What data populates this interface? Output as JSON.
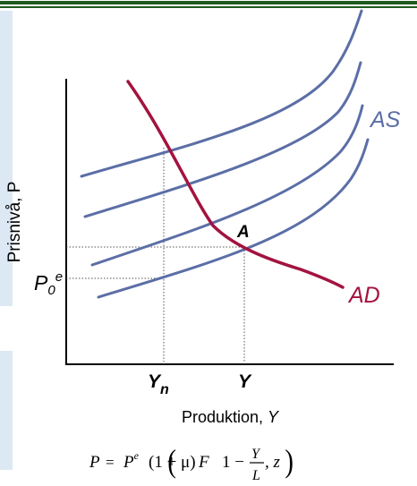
{
  "diagram": {
    "y_axis_label": "Prisnivå, P",
    "x_axis_label_prefix": "Produktion, ",
    "x_axis_label_var": "Y",
    "p0_main": "P",
    "p0_sub": "0",
    "p0_sup": "e",
    "point_label": "A",
    "as_label": "AS",
    "ad_label": "AD",
    "tick_yn_main": "Y",
    "tick_yn_sub": "n",
    "tick_y": "Y",
    "colors": {
      "as_curves": "#5b6ea6",
      "ad_curve": "#a3133f",
      "axes": "#000000",
      "guides": "#555555",
      "top_bar": "#1f5a1f",
      "side_panel": "#dce8f4"
    }
  },
  "formula": {
    "lhs": "P",
    "eq": "=",
    "pe": "P",
    "pe_sup": "e",
    "factor": "(1 + μ)",
    "func": "F",
    "lparen": "(",
    "one_minus": "1 −",
    "num": "Y",
    "den": "L",
    "comma_z": ", z",
    "rparen": ")"
  }
}
